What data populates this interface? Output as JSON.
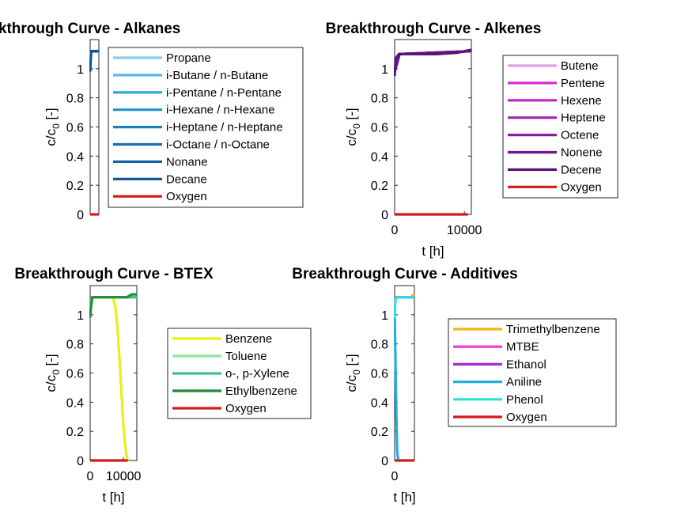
{
  "chart_data": [
    {
      "type": "line",
      "title": "Breakthrough Curve - Alkanes",
      "xlabel": "",
      "ylabel": "c/c0 [-]",
      "ylabel_main": "c/c",
      "ylabel_sub": "0",
      "ylabel_unit": " [-]",
      "xlim": [
        0,
        10000
      ],
      "ylim": [
        0,
        1.2
      ],
      "xticks": [],
      "yticks": [
        "0",
        "0.2",
        "0.4",
        "0.6",
        "0.8",
        "1"
      ],
      "legend": "right",
      "series": [
        {
          "name": "Propane",
          "color": "#87cdee",
          "x": [
            0,
            10000
          ],
          "y": [
            1.12,
            1.12
          ]
        },
        {
          "name": "i-Butane / n-Butane",
          "color": "#54bbe6",
          "x": [
            0,
            10000
          ],
          "y": [
            1.12,
            1.12
          ]
        },
        {
          "name": "i-Pentane / n-Pentane",
          "color": "#2aa6dc",
          "x": [
            0,
            10000
          ],
          "y": [
            1.12,
            1.12
          ]
        },
        {
          "name": "i-Hexane / n-Hexane",
          "color": "#1f93cf",
          "x": [
            0,
            10000
          ],
          "y": [
            1.12,
            1.12
          ]
        },
        {
          "name": "i-Heptane / n-Heptane",
          "color": "#1b80c0",
          "x": [
            0,
            10000
          ],
          "y": [
            1.12,
            1.12
          ]
        },
        {
          "name": "i-Octane / n-Octane",
          "color": "#166fb0",
          "x": [
            0,
            10000
          ],
          "y": [
            1.12,
            1.12
          ]
        },
        {
          "name": "Nonane",
          "color": "#1462a3",
          "x": [
            0,
            10000
          ],
          "y": [
            1.12,
            1.12
          ]
        },
        {
          "name": "Decane",
          "color": "#0f5396",
          "x": [
            0,
            1200,
            10000
          ],
          "y": [
            0.98,
            1.12,
            1.12
          ]
        },
        {
          "name": "Oxygen",
          "color": "#d21a1a",
          "x": [
            0,
            10000
          ],
          "y": [
            0,
            0
          ]
        }
      ]
    },
    {
      "type": "line",
      "title": "Breakthrough Curve - Alkenes",
      "xlabel": "t [h]",
      "ylabel": "c/c0 [-]",
      "ylabel_main": "c/c",
      "ylabel_sub": "0",
      "ylabel_unit": " [-]",
      "xlim": [
        0,
        11000
      ],
      "ylim": [
        0,
        1.2
      ],
      "xticks": [
        "0",
        "10000"
      ],
      "yticks": [
        "0",
        "0.2",
        "0.4",
        "0.6",
        "0.8",
        "1"
      ],
      "legend": "right",
      "series": [
        {
          "name": "Butene",
          "color": "#e09ee8",
          "x": [
            0,
            700,
            11000
          ],
          "y": [
            0.98,
            1.1,
            1.12
          ]
        },
        {
          "name": "Pentene",
          "color": "#d22fd8",
          "x": [
            0,
            700,
            11000
          ],
          "y": [
            0.98,
            1.1,
            1.12
          ]
        },
        {
          "name": "Hexene",
          "color": "#bd27c8",
          "x": [
            0,
            700,
            11000
          ],
          "y": [
            0.98,
            1.1,
            1.12
          ]
        },
        {
          "name": "Heptene",
          "color": "#a421b8",
          "x": [
            0,
            700,
            11000
          ],
          "y": [
            0.98,
            1.1,
            1.12
          ]
        },
        {
          "name": "Octene",
          "color": "#8a1aa4",
          "x": [
            0,
            700,
            11000
          ],
          "y": [
            0.98,
            1.1,
            1.12
          ]
        },
        {
          "name": "Nonene",
          "color": "#6f168f",
          "x": [
            0,
            700,
            11000
          ],
          "y": [
            0.98,
            1.1,
            1.12
          ]
        },
        {
          "name": "Decene",
          "color": "#591276",
          "x": [
            0,
            150,
            600,
            2000,
            6000,
            9000,
            11000
          ],
          "y": [
            0.95,
            1.07,
            1.1,
            1.1,
            1.1,
            1.11,
            1.13
          ]
        },
        {
          "name": "Oxygen",
          "color": "#d21a1a",
          "x": [
            0,
            10500
          ],
          "y": [
            0,
            0
          ]
        }
      ]
    },
    {
      "type": "line",
      "title": "Breakthrough Curve - BTEX",
      "xlabel": "t [h]",
      "ylabel": "c/c0 [-]",
      "ylabel_main": "c/c",
      "ylabel_sub": "0",
      "ylabel_unit": " [-]",
      "xlim": [
        0,
        14000
      ],
      "ylim": [
        0,
        1.2
      ],
      "xticks": [
        "0",
        "10000"
      ],
      "yticks": [
        "0",
        "0.2",
        "0.4",
        "0.6",
        "0.8",
        "1"
      ],
      "legend": "right",
      "series": [
        {
          "name": "Benzene",
          "color": "#e8ef19",
          "x": [
            0,
            500,
            6800,
            7600,
            8200,
            8800,
            9300,
            9800,
            10300,
            10800,
            11300
          ],
          "y": [
            1.0,
            1.12,
            1.12,
            1.05,
            0.9,
            0.7,
            0.5,
            0.3,
            0.15,
            0.05,
            0.0
          ]
        },
        {
          "name": "Toluene",
          "color": "#8eea9a",
          "x": [
            0,
            500,
            14000
          ],
          "y": [
            1.0,
            1.12,
            1.12
          ]
        },
        {
          "name": "o-, p-Xylene",
          "color": "#3dc48a",
          "x": [
            0,
            500,
            14000
          ],
          "y": [
            1.0,
            1.12,
            1.12
          ]
        },
        {
          "name": "Ethylbenzene",
          "color": "#238a37",
          "x": [
            0,
            300,
            700,
            2000,
            8000,
            11000,
            12500,
            14000
          ],
          "y": [
            0.98,
            1.07,
            1.12,
            1.12,
            1.12,
            1.12,
            1.14,
            1.14
          ]
        },
        {
          "name": "Oxygen",
          "color": "#d21a1a",
          "x": [
            0,
            11300
          ],
          "y": [
            0,
            0
          ]
        }
      ]
    },
    {
      "type": "line",
      "title": "Breakthrough Curve - Additives",
      "xlabel": "t [h]",
      "ylabel": "c/c0 [-]",
      "ylabel_main": "c/c",
      "ylabel_sub": "0",
      "ylabel_unit": " [-]",
      "xlim": [
        0,
        1500
      ],
      "ylim": [
        0,
        1.2
      ],
      "xticks": [
        "0"
      ],
      "yticks": [
        "0",
        "0.2",
        "0.4",
        "0.6",
        "0.8",
        "1"
      ],
      "legend": "right",
      "series": [
        {
          "name": "Trimethylbenzene",
          "color": "#f4b515",
          "x": [
            0,
            200,
            1200,
            1500
          ],
          "y": [
            1.12,
            1.12,
            1.12,
            1.14
          ]
        },
        {
          "name": "MTBE",
          "color": "#ec36d8",
          "x": [
            0,
            200,
            1500
          ],
          "y": [
            1.12,
            1.12,
            1.12
          ]
        },
        {
          "name": "Ethanol",
          "color": "#a12bd6",
          "x": [
            0,
            200,
            1500
          ],
          "y": [
            1.12,
            1.12,
            1.12
          ]
        },
        {
          "name": "Aniline",
          "color": "#1faee2",
          "x": [
            0,
            60,
            130,
            200,
            280
          ],
          "y": [
            1.0,
            0.7,
            0.3,
            0.05,
            0.0
          ]
        },
        {
          "name": "Phenol",
          "color": "#2ae2dc",
          "x": [
            0,
            60,
            120,
            1500
          ],
          "y": [
            0.98,
            1.1,
            1.12,
            1.12
          ]
        },
        {
          "name": "Oxygen",
          "color": "#d21a1a",
          "x": [
            0,
            1500
          ],
          "y": [
            0,
            0
          ]
        }
      ]
    }
  ]
}
